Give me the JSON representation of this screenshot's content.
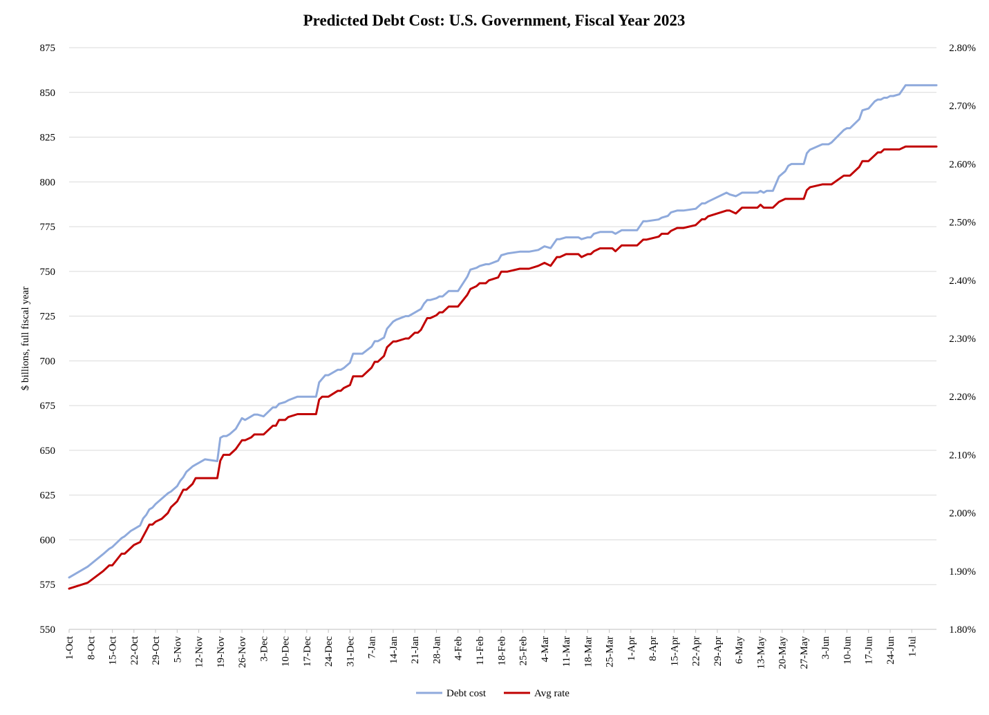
{
  "chart_data": {
    "type": "line",
    "title": "Predicted Debt Cost: U.S. Government, Fiscal Year 2023",
    "ylabel": "$ billions, full fiscal year",
    "y2label": "",
    "ylim": [
      550,
      875
    ],
    "y_ticks": [
      "550",
      "575",
      "600",
      "625",
      "650",
      "675",
      "700",
      "725",
      "750",
      "775",
      "800",
      "825",
      "850",
      "875"
    ],
    "y2lim": [
      1.8,
      2.8
    ],
    "y2_ticks": [
      "1.80%",
      "1.90%",
      "2.00%",
      "2.10%",
      "2.20%",
      "2.30%",
      "2.40%",
      "2.50%",
      "2.60%",
      "2.70%",
      "2.80%"
    ],
    "x_categories": [
      "1-Oct",
      "8-Oct",
      "15-Oct",
      "22-Oct",
      "29-Oct",
      "5-Nov",
      "12-Nov",
      "19-Nov",
      "26-Nov",
      "3-Dec",
      "10-Dec",
      "17-Dec",
      "24-Dec",
      "31-Dec",
      "7-Jan",
      "14-Jan",
      "21-Jan",
      "28-Jan",
      "4-Feb",
      "11-Feb",
      "18-Feb",
      "25-Feb",
      "4-Mar",
      "11-Mar",
      "18-Mar",
      "25-Mar",
      "1-Apr",
      "8-Apr",
      "15-Apr",
      "22-Apr",
      "29-Apr",
      "6-May",
      "13-May",
      "20-May",
      "27-May",
      "3-Jun",
      "10-Jun",
      "17-Jun",
      "24-Jun",
      "1-Jul"
    ],
    "grid": true,
    "legend_position": "bottom",
    "series": [
      {
        "name": "Debt cost",
        "axis": "left",
        "color": "#8faadc",
        "x_day": [
          0,
          6,
          11,
          13,
          14,
          17,
          18,
          20,
          21,
          23,
          24,
          25,
          26,
          27,
          28,
          30,
          32,
          33,
          35,
          36,
          37,
          38,
          40,
          41,
          42,
          44,
          48,
          49,
          50,
          51,
          52,
          54,
          56,
          57,
          59,
          60,
          61,
          63,
          66,
          67,
          68,
          70,
          71,
          74,
          76,
          77,
          78,
          80,
          81,
          82,
          83,
          84,
          87,
          88,
          89,
          91,
          92,
          94,
          95,
          98,
          99,
          100,
          102,
          103,
          105,
          106,
          109,
          110,
          112,
          113,
          114,
          115,
          116,
          117,
          119,
          120,
          121,
          123,
          124,
          126,
          129,
          130,
          132,
          133,
          135,
          136,
          139,
          140,
          142,
          146,
          147,
          149,
          152,
          154,
          156,
          158,
          159,
          161,
          162,
          164,
          165,
          166,
          168,
          169,
          170,
          172,
          174,
          176,
          177,
          179,
          184,
          186,
          187,
          191,
          192,
          194,
          195,
          197,
          198,
          199,
          203,
          205,
          206,
          207,
          213,
          214,
          216,
          218,
          219,
          221,
          223,
          224,
          225,
          226,
          228,
          230,
          232,
          233,
          234,
          236,
          238,
          239,
          240,
          244,
          245,
          246,
          247,
          251,
          252,
          253,
          256,
          257,
          259,
          261,
          262,
          263,
          264,
          265,
          266,
          267,
          269,
          271,
          272,
          274,
          276,
          278,
          279,
          280,
          281
        ],
        "values": [
          579,
          585,
          592,
          595,
          596,
          601,
          602,
          605,
          606,
          608,
          612,
          614,
          617,
          618,
          620,
          623,
          626,
          627,
          630,
          633,
          635,
          638,
          641,
          642,
          643,
          645,
          644,
          657,
          658,
          658,
          659,
          662,
          668,
          667,
          669,
          670,
          670,
          669,
          674,
          674,
          676,
          677,
          678,
          680,
          680,
          680,
          680,
          680,
          688,
          690,
          692,
          692,
          695,
          695,
          696,
          699,
          704,
          704,
          704,
          708,
          711,
          711,
          713,
          718,
          722,
          723,
          725,
          725,
          727,
          728,
          729,
          732,
          734,
          734,
          735,
          736,
          736,
          739,
          739,
          739,
          747,
          751,
          752,
          753,
          754,
          754,
          756,
          759,
          760,
          761,
          761,
          761,
          762,
          764,
          763,
          768,
          768,
          769,
          769,
          769,
          769,
          768,
          769,
          769,
          771,
          772,
          772,
          772,
          771,
          773,
          773,
          778,
          778,
          779,
          780,
          781,
          783,
          784,
          784,
          784,
          785,
          788,
          788,
          789,
          794,
          793,
          792,
          794,
          794,
          794,
          794,
          795,
          794,
          795,
          795,
          803,
          806,
          809,
          810,
          810,
          810,
          816,
          818,
          821,
          821,
          821,
          822,
          829,
          830,
          830,
          835,
          840,
          841,
          845,
          846,
          846,
          847,
          847,
          848,
          848,
          849,
          854,
          854,
          854,
          854,
          854,
          854,
          854,
          854
        ],
        "note_x": "day index counted from 1-Oct"
      },
      {
        "name": "Avg rate",
        "axis": "right",
        "color": "#c00000",
        "x_day": [
          0,
          6,
          11,
          13,
          14,
          17,
          18,
          20,
          21,
          23,
          24,
          25,
          26,
          27,
          28,
          30,
          32,
          33,
          35,
          36,
          37,
          38,
          40,
          41,
          42,
          44,
          48,
          49,
          50,
          51,
          52,
          54,
          56,
          57,
          59,
          60,
          61,
          63,
          66,
          67,
          68,
          70,
          71,
          74,
          76,
          77,
          78,
          80,
          81,
          82,
          83,
          84,
          87,
          88,
          89,
          91,
          92,
          94,
          95,
          98,
          99,
          100,
          102,
          103,
          105,
          106,
          109,
          110,
          112,
          113,
          114,
          115,
          116,
          117,
          119,
          120,
          121,
          123,
          124,
          126,
          129,
          130,
          132,
          133,
          135,
          136,
          139,
          140,
          142,
          146,
          147,
          149,
          152,
          154,
          156,
          158,
          159,
          161,
          162,
          164,
          165,
          166,
          168,
          169,
          170,
          172,
          174,
          176,
          177,
          179,
          184,
          186,
          187,
          191,
          192,
          194,
          195,
          197,
          198,
          199,
          203,
          205,
          206,
          207,
          213,
          214,
          216,
          218,
          219,
          221,
          223,
          224,
          225,
          226,
          228,
          230,
          232,
          233,
          234,
          236,
          238,
          239,
          240,
          244,
          245,
          246,
          247,
          251,
          252,
          253,
          256,
          257,
          259,
          261,
          262,
          263,
          264,
          265,
          266,
          267,
          269,
          271,
          272,
          274,
          276,
          278,
          279,
          280,
          281
        ],
        "values": [
          1.87,
          1.88,
          1.9,
          1.91,
          1.91,
          1.93,
          1.93,
          1.94,
          1.945,
          1.95,
          1.96,
          1.97,
          1.98,
          1.98,
          1.985,
          1.99,
          2.0,
          2.01,
          2.02,
          2.03,
          2.04,
          2.04,
          2.05,
          2.06,
          2.06,
          2.06,
          2.06,
          2.09,
          2.1,
          2.1,
          2.1,
          2.11,
          2.125,
          2.125,
          2.13,
          2.135,
          2.135,
          2.135,
          2.15,
          2.15,
          2.16,
          2.16,
          2.165,
          2.17,
          2.17,
          2.17,
          2.17,
          2.17,
          2.195,
          2.2,
          2.2,
          2.2,
          2.21,
          2.21,
          2.215,
          2.22,
          2.235,
          2.235,
          2.235,
          2.25,
          2.26,
          2.26,
          2.27,
          2.285,
          2.295,
          2.295,
          2.3,
          2.3,
          2.31,
          2.31,
          2.315,
          2.325,
          2.335,
          2.335,
          2.34,
          2.345,
          2.345,
          2.355,
          2.355,
          2.355,
          2.375,
          2.385,
          2.39,
          2.395,
          2.395,
          2.4,
          2.405,
          2.415,
          2.415,
          2.42,
          2.42,
          2.42,
          2.425,
          2.43,
          2.425,
          2.44,
          2.44,
          2.445,
          2.445,
          2.445,
          2.445,
          2.44,
          2.445,
          2.445,
          2.45,
          2.455,
          2.455,
          2.455,
          2.45,
          2.46,
          2.46,
          2.47,
          2.47,
          2.475,
          2.48,
          2.48,
          2.485,
          2.49,
          2.49,
          2.49,
          2.495,
          2.505,
          2.505,
          2.51,
          2.52,
          2.52,
          2.515,
          2.525,
          2.525,
          2.525,
          2.525,
          2.53,
          2.525,
          2.525,
          2.525,
          2.535,
          2.54,
          2.54,
          2.54,
          2.54,
          2.54,
          2.555,
          2.56,
          2.565,
          2.565,
          2.565,
          2.565,
          2.58,
          2.58,
          2.58,
          2.595,
          2.605,
          2.605,
          2.615,
          2.62,
          2.62,
          2.625,
          2.625,
          2.625,
          2.625,
          2.625,
          2.63,
          2.63,
          2.63,
          2.63,
          2.63,
          2.63,
          2.63,
          2.63
        ]
      }
    ]
  }
}
